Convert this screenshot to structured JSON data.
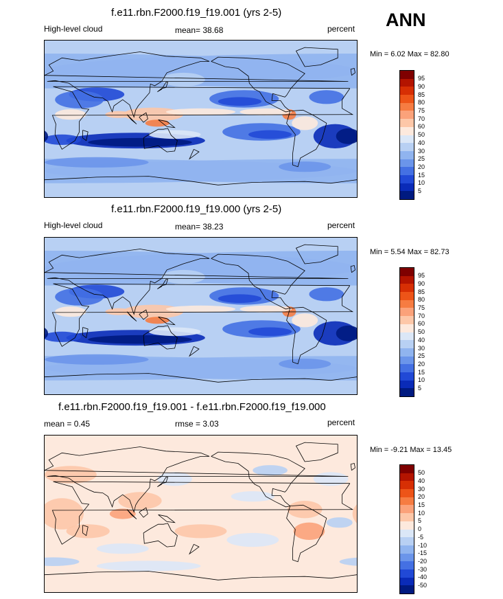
{
  "season": "ANN",
  "panels": [
    {
      "title": "f.e11.rbn.F2000.f19_f19.001 (yrs 2-5)",
      "left_label": "High-level cloud",
      "mean_text": "mean=  38.68",
      "units": "percent",
      "minmax": "Min =   6.02 Max =  82.80",
      "colorbar": {
        "labels": [
          "95",
          "90",
          "85",
          "80",
          "75",
          "70",
          "60",
          "50",
          "40",
          "30",
          "25",
          "20",
          "15",
          "10",
          "5"
        ],
        "colors": [
          "#7f0000",
          "#b41400",
          "#d72f04",
          "#ed5418",
          "#f67c42",
          "#fba27a",
          "#fdc7a8",
          "#fde9dd",
          "#dbe7f7",
          "#b8d0f3",
          "#90b4ef",
          "#6b95ea",
          "#4470e3",
          "#2149d6",
          "#0a2bb8",
          "#001a80"
        ]
      },
      "map_style": "high"
    },
    {
      "title": "f.e11.rbn.F2000.f19_f19.000 (yrs 2-5)",
      "left_label": "High-level cloud",
      "mean_text": "mean=  38.23",
      "units": "percent",
      "minmax": "Min =   5.54 Max =  82.73",
      "colorbar": {
        "labels": [
          "95",
          "90",
          "85",
          "80",
          "75",
          "70",
          "60",
          "50",
          "40",
          "30",
          "25",
          "20",
          "15",
          "10",
          "5"
        ],
        "colors": [
          "#7f0000",
          "#b41400",
          "#d72f04",
          "#ed5418",
          "#f67c42",
          "#fba27a",
          "#fdc7a8",
          "#fde9dd",
          "#dbe7f7",
          "#b8d0f3",
          "#90b4ef",
          "#6b95ea",
          "#4470e3",
          "#2149d6",
          "#0a2bb8",
          "#001a80"
        ]
      },
      "map_style": "high"
    },
    {
      "title": "f.e11.rbn.F2000.f19_f19.001 - f.e11.rbn.F2000.f19_f19.000",
      "left_label": "mean =   0.45",
      "mean_text": "rmse =   3.03",
      "units": "percent",
      "minmax": "Min =  -9.21 Max =  13.45",
      "colorbar": {
        "labels": [
          "50",
          "40",
          "30",
          "20",
          "15",
          "10",
          "5",
          "0",
          "-5",
          "-10",
          "-15",
          "-20",
          "-30",
          "-40",
          "-50"
        ],
        "colors": [
          "#7f0000",
          "#b41400",
          "#d72f04",
          "#ed5418",
          "#f67c42",
          "#fba27a",
          "#fdc7a8",
          "#fde9dd",
          "#dbe7f7",
          "#b8d0f3",
          "#90b4ef",
          "#6b95ea",
          "#4470e3",
          "#2149d6",
          "#0a2bb8",
          "#001a80"
        ]
      },
      "map_style": "diff"
    }
  ],
  "chart_data": [
    {
      "type": "heatmap",
      "title": "f.e11.rbn.F2000.f19_f19.001 (yrs 2-5)",
      "variable": "High-level cloud",
      "units": "percent",
      "mean": 38.68,
      "min": 6.02,
      "max": 82.8,
      "contour_levels": [
        5,
        10,
        15,
        20,
        25,
        30,
        40,
        50,
        60,
        70,
        75,
        80,
        85,
        90,
        95
      ]
    },
    {
      "type": "heatmap",
      "title": "f.e11.rbn.F2000.f19_f19.000 (yrs 2-5)",
      "variable": "High-level cloud",
      "units": "percent",
      "mean": 38.23,
      "min": 5.54,
      "max": 82.73,
      "contour_levels": [
        5,
        10,
        15,
        20,
        25,
        30,
        40,
        50,
        60,
        70,
        75,
        80,
        85,
        90,
        95
      ]
    },
    {
      "type": "heatmap",
      "title": "f.e11.rbn.F2000.f19_f19.001 - f.e11.rbn.F2000.f19_f19.000",
      "units": "percent",
      "mean": 0.45,
      "rmse": 3.03,
      "min": -9.21,
      "max": 13.45,
      "contour_levels": [
        -50,
        -40,
        -30,
        -20,
        -15,
        -10,
        -5,
        0,
        5,
        10,
        15,
        20,
        30,
        40,
        50
      ]
    }
  ]
}
